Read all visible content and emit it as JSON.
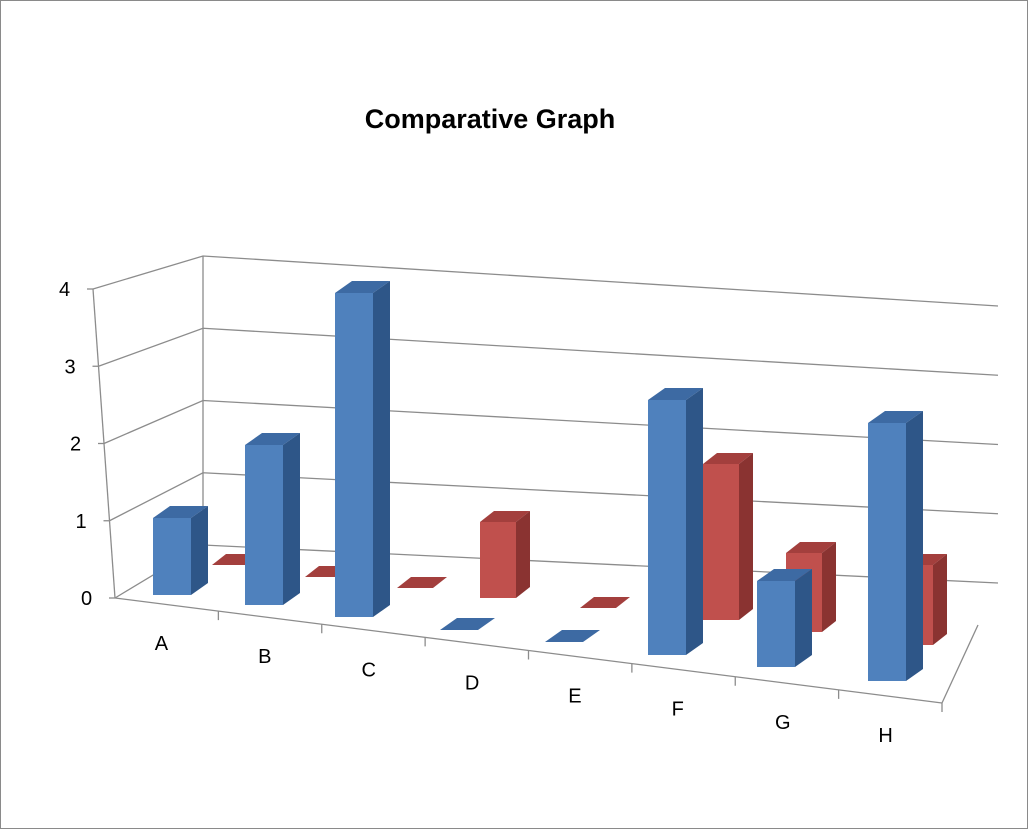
{
  "chart_data": {
    "type": "bar",
    "title": "Comparative Graph",
    "xlabel": "",
    "ylabel": "",
    "categories": [
      "A",
      "B",
      "C",
      "D",
      "E",
      "F",
      "G",
      "H"
    ],
    "y_ticks": [
      "0",
      "1",
      "2",
      "3",
      "4"
    ],
    "ylim": [
      0,
      4
    ],
    "grid": true,
    "legend": "none",
    "series": [
      {
        "values": [
          1,
          2,
          4,
          0,
          0,
          3,
          1,
          3
        ]
      },
      {
        "values": [
          0,
          0,
          0,
          1,
          0,
          2,
          1,
          1
        ]
      }
    ],
    "colors": {
      "series1_front": "#4f81bd",
      "series1_top": "#3d6aa3",
      "series1_side": "#2e5688",
      "series2_front": "#c0504d",
      "series2_top": "#a33f3d",
      "series2_side": "#8a3331",
      "gridline": "#8c8c8c",
      "axis": "#8c8c8c"
    }
  }
}
